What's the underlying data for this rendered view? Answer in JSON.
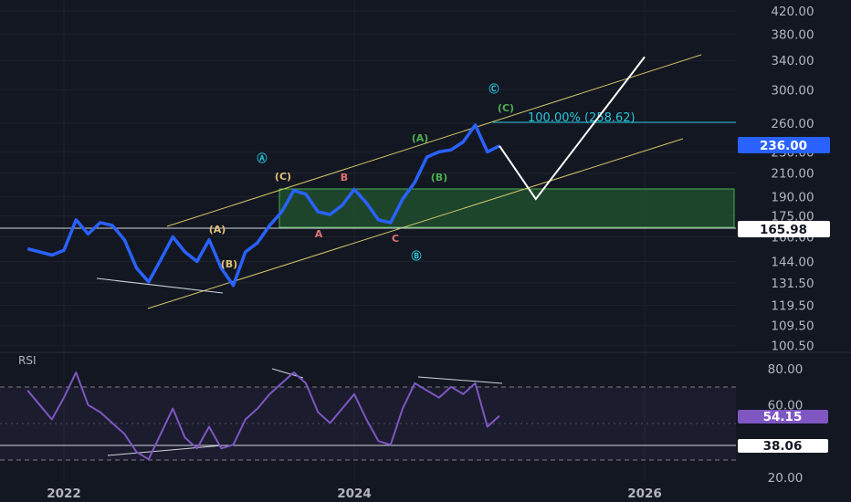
{
  "chart_data": [
    {
      "type": "line",
      "price_axis_labels": [
        "420.00",
        "380.00",
        "340.00",
        "300.00",
        "260.00",
        "230.00",
        "210.00",
        "190.00",
        "175.00",
        "160.00",
        "144.00",
        "131.50",
        "119.50",
        "109.50",
        "100.50"
      ],
      "price_axis_values": [
        420,
        380,
        340,
        300,
        260,
        230,
        210,
        190,
        175,
        160,
        144,
        131.5,
        119.5,
        109.5,
        100.5
      ],
      "time_axis_labels": [
        "2022",
        "2024",
        "2026"
      ],
      "last_price": "236.00",
      "support_level": "165.98",
      "fib_label": "100.00% (258.62)",
      "x": [
        "2021-10",
        "2021-11",
        "2021-12",
        "2022-01",
        "2022-02",
        "2022-03",
        "2022-04",
        "2022-05",
        "2022-06",
        "2022-07",
        "2022-08",
        "2022-09",
        "2022-10",
        "2022-11",
        "2022-12",
        "2023-01",
        "2023-02",
        "2023-03",
        "2023-04",
        "2023-05",
        "2023-06",
        "2023-07",
        "2023-08",
        "2023-09",
        "2023-10",
        "2023-11",
        "2023-12",
        "2024-01",
        "2024-02",
        "2024-03",
        "2024-04",
        "2024-05",
        "2024-06",
        "2024-07",
        "2024-08",
        "2024-09",
        "2024-10",
        "2024-11",
        "2024-12",
        "2025-01"
      ],
      "y": [
        152,
        150,
        148,
        151,
        172,
        162,
        170,
        168,
        158,
        140,
        132,
        145,
        160,
        150,
        144,
        158,
        140,
        130,
        150,
        156,
        168,
        178,
        195,
        192,
        178,
        176,
        183,
        196,
        185,
        172,
        170,
        188,
        202,
        225,
        230,
        232,
        240,
        258,
        230,
        236
      ],
      "projection": {
        "x": [
          "2025-01",
          "2025-04",
          "2026-01"
        ],
        "y": [
          236,
          188,
          345
        ]
      },
      "wave_labels": [
        {
          "text": "Ⓐ",
          "color": "#26c6da"
        },
        {
          "text": "(C)",
          "color": "#e2c17a"
        },
        {
          "text": "(A)",
          "color": "#e2c17a"
        },
        {
          "text": "(B)",
          "color": "#e2c17a"
        },
        {
          "text": "B",
          "color": "#e57373"
        },
        {
          "text": "A",
          "color": "#e57373"
        },
        {
          "text": "C",
          "color": "#e57373"
        },
        {
          "text": "Ⓑ",
          "color": "#26c6da"
        },
        {
          "text": "(A)",
          "color": "#4caf50"
        },
        {
          "text": "(B)",
          "color": "#4caf50"
        },
        {
          "text": "(C)",
          "color": "#4caf50"
        },
        {
          "text": "Ⓒ",
          "color": "#26c6da"
        }
      ],
      "colors": {
        "price_line": "#2962ff",
        "channel": "#d4c56a",
        "zone": "#1f4d2e",
        "projection": "#ffffff"
      }
    },
    {
      "type": "line",
      "title": "RSI",
      "rsi_axis_labels": [
        "80.00",
        "60.00",
        "20.00"
      ],
      "rsi_axis_values": [
        80,
        60,
        20
      ],
      "last_value": "54.15",
      "marked_level": "38.06",
      "upper_band": 70,
      "lower_band": 30,
      "x": [
        "2021-10",
        "2021-11",
        "2021-12",
        "2022-01",
        "2022-02",
        "2022-03",
        "2022-04",
        "2022-05",
        "2022-06",
        "2022-07",
        "2022-08",
        "2022-09",
        "2022-10",
        "2022-11",
        "2022-12",
        "2023-01",
        "2023-02",
        "2023-03",
        "2023-04",
        "2023-05",
        "2023-06",
        "2023-07",
        "2023-08",
        "2023-09",
        "2023-10",
        "2023-11",
        "2023-12",
        "2024-01",
        "2024-02",
        "2024-03",
        "2024-04",
        "2024-05",
        "2024-06",
        "2024-07",
        "2024-08",
        "2024-09",
        "2024-10",
        "2024-11",
        "2024-12",
        "2025-01"
      ],
      "y": [
        68,
        60,
        52,
        64,
        78,
        60,
        56,
        50,
        44,
        34,
        30,
        44,
        58,
        42,
        36,
        48,
        36,
        38,
        52,
        58,
        66,
        72,
        78,
        72,
        56,
        50,
        58,
        66,
        52,
        40,
        38,
        58,
        72,
        68,
        64,
        70,
        66,
        72,
        48,
        54
      ],
      "colors": {
        "rsi_line": "#7e57c2",
        "band": "#7e57c2",
        "badge": "#7e57c2"
      }
    }
  ]
}
